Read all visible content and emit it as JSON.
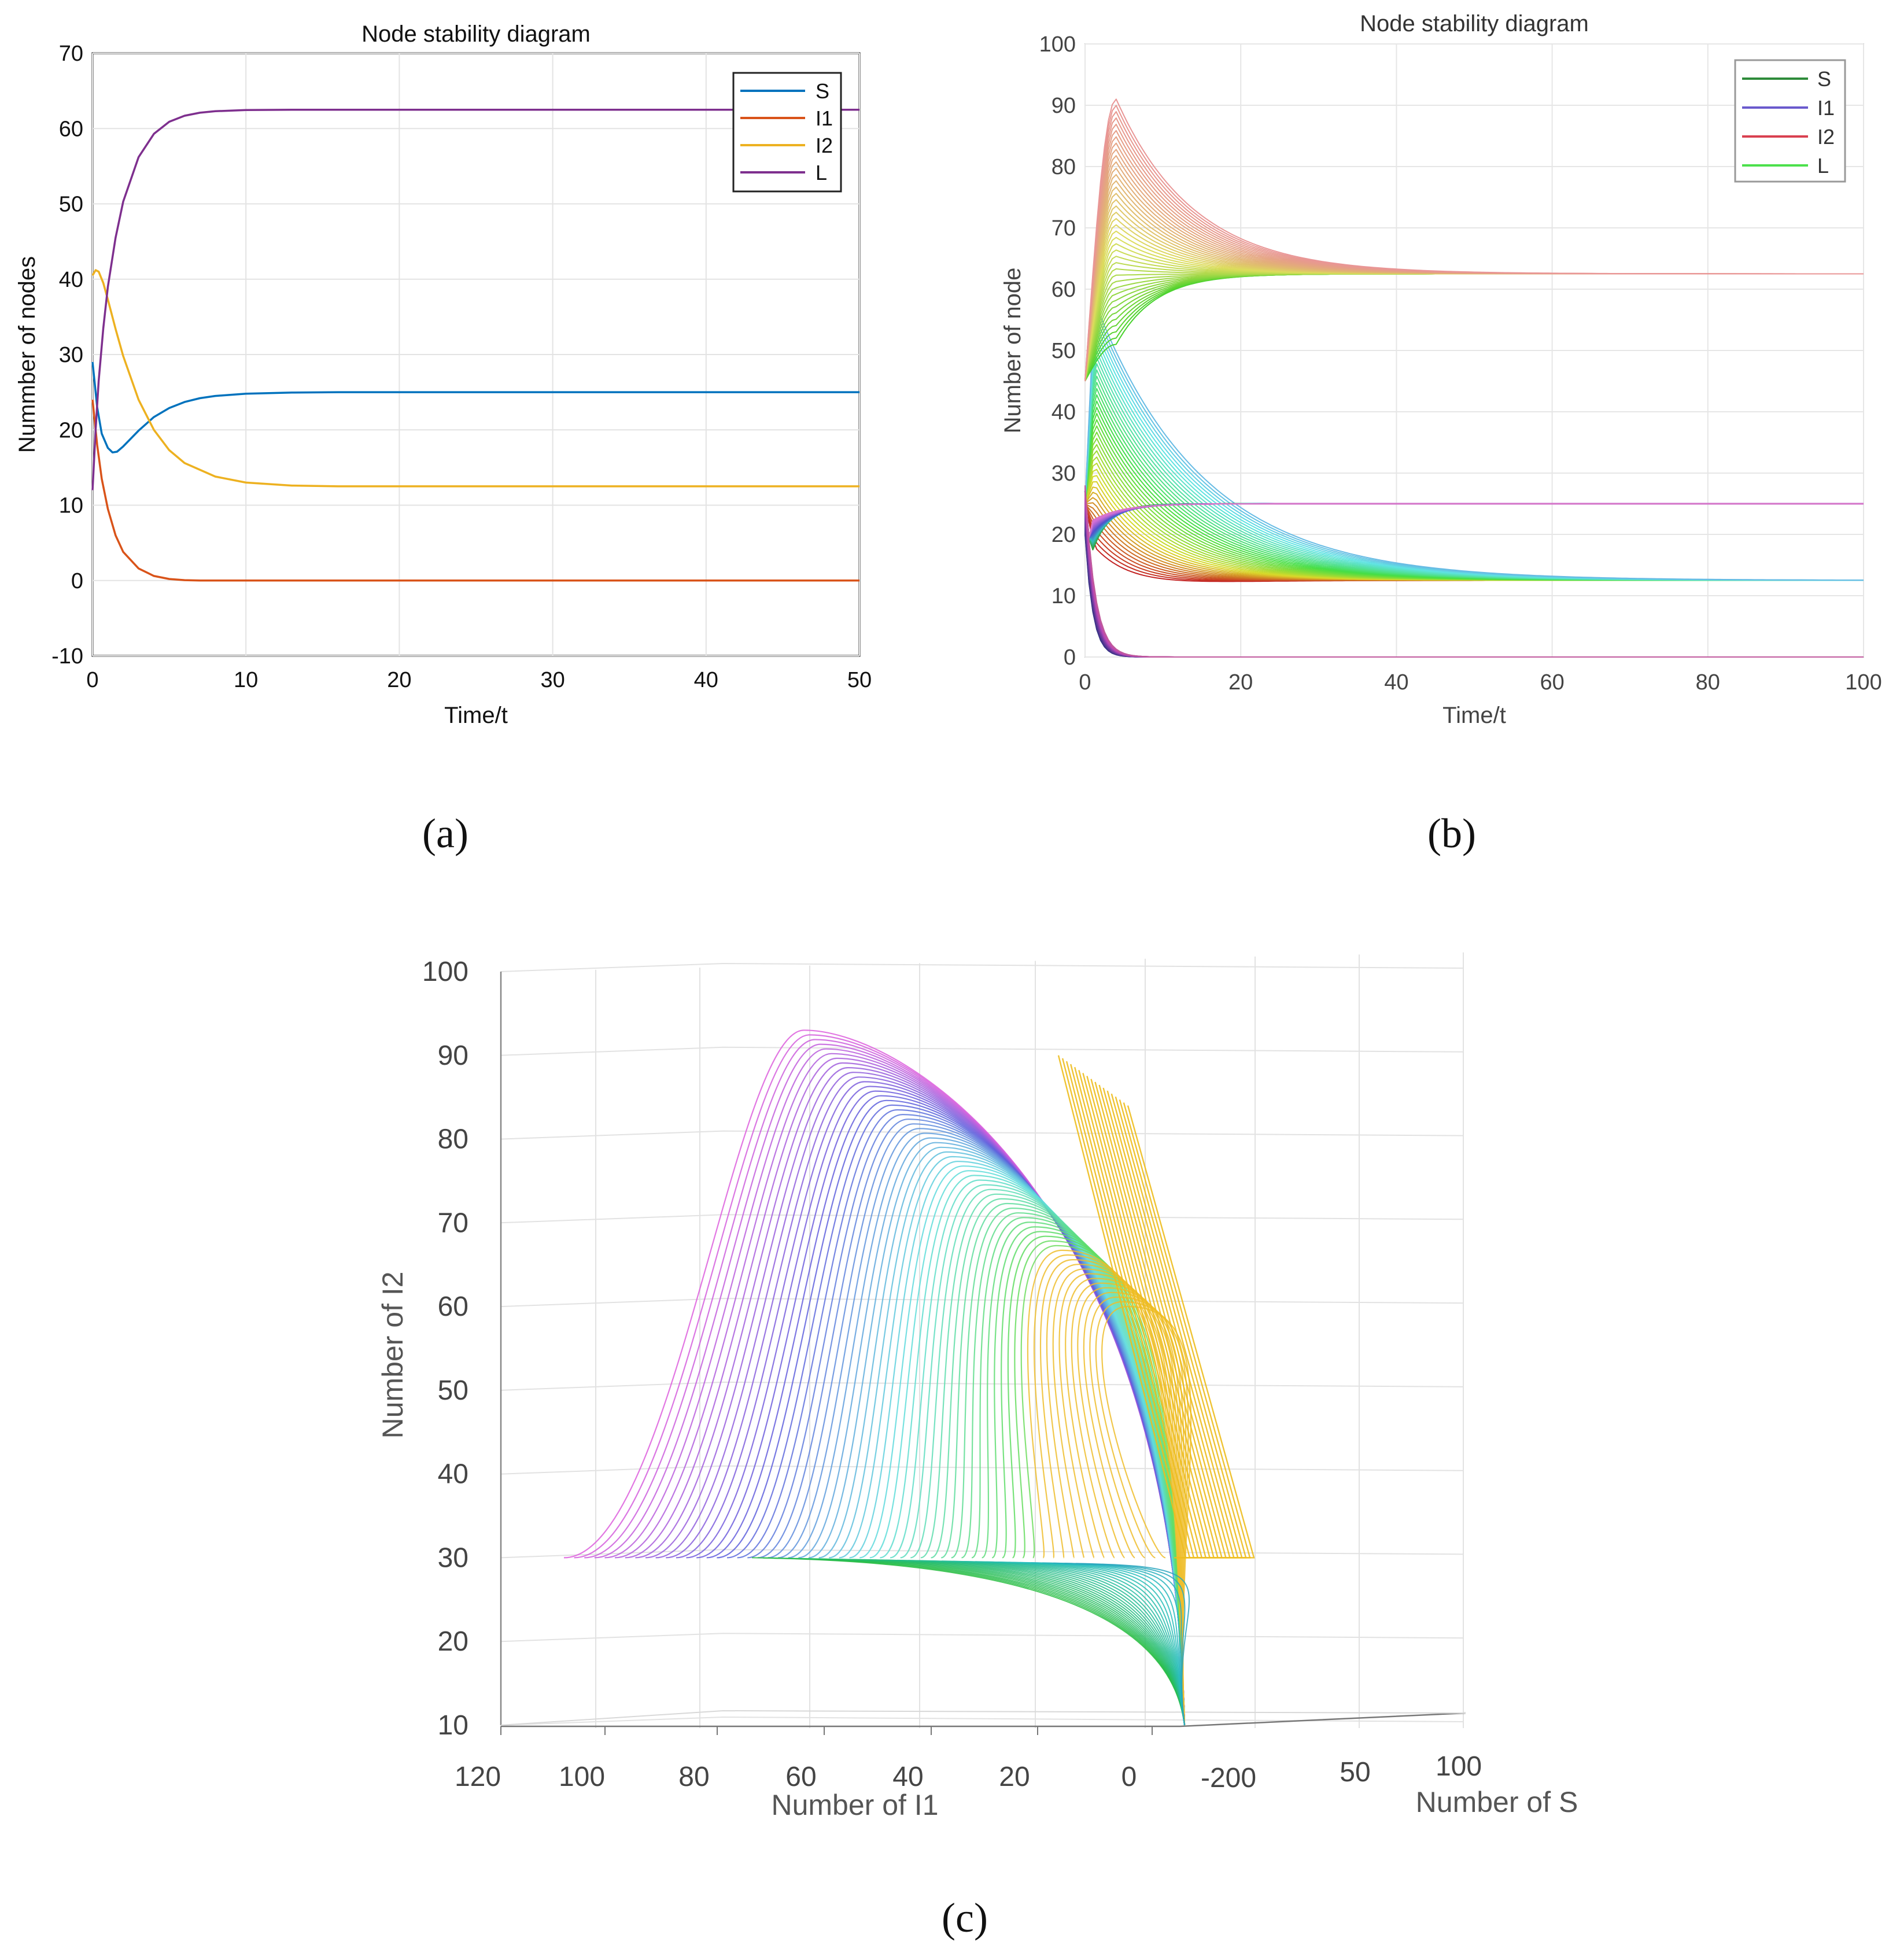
{
  "chart_data": [
    {
      "id": "a",
      "type": "line",
      "panel_label": "(a)",
      "title": "Node stability diagram",
      "xlabel": "Time/t",
      "ylabel": "Nummber of nodes",
      "xlim": [
        0,
        50
      ],
      "ylim": [
        -10,
        70
      ],
      "xticks": [
        0,
        10,
        20,
        30,
        40,
        50
      ],
      "yticks": [
        -10,
        0,
        10,
        20,
        30,
        40,
        50,
        60,
        70
      ],
      "grid": true,
      "legend_position": "top-right",
      "series": [
        {
          "name": "S",
          "color": "#0072BD",
          "x": [
            0,
            0.3,
            0.6,
            1,
            1.3,
            1.6,
            2,
            3,
            4,
            5,
            6,
            7,
            8,
            10,
            13,
            16,
            20,
            30,
            40,
            50
          ],
          "y": [
            29,
            23,
            19.5,
            17.6,
            17.0,
            17.1,
            17.8,
            19.9,
            21.7,
            22.9,
            23.7,
            24.2,
            24.5,
            24.8,
            24.95,
            25,
            25,
            25,
            25,
            25
          ]
        },
        {
          "name": "I1",
          "color": "#D95319",
          "x": [
            0,
            0.3,
            0.6,
            1,
            1.5,
            2,
            3,
            4,
            5,
            6,
            7,
            10,
            20,
            30,
            40,
            50
          ],
          "y": [
            24,
            18,
            13.5,
            9.5,
            6,
            3.8,
            1.6,
            0.6,
            0.2,
            0.05,
            0,
            0,
            0,
            0,
            0,
            0
          ]
        },
        {
          "name": "I2",
          "color": "#EDB120",
          "x": [
            0,
            0.2,
            0.4,
            0.7,
            1,
            1.5,
            2,
            3,
            4,
            5,
            6,
            8,
            10,
            13,
            16,
            20,
            30,
            40,
            50
          ],
          "y": [
            40.5,
            41.2,
            41.0,
            39.5,
            37.3,
            33.4,
            29.8,
            24.0,
            20.0,
            17.3,
            15.6,
            13.8,
            13.0,
            12.6,
            12.5,
            12.5,
            12.5,
            12.5,
            12.5
          ]
        },
        {
          "name": "L",
          "color": "#7E2F8E",
          "x": [
            0,
            0.2,
            0.4,
            0.7,
            1,
            1.5,
            2,
            3,
            4,
            5,
            6,
            7,
            8,
            10,
            13,
            20,
            30,
            40,
            50
          ],
          "y": [
            12,
            20,
            26.5,
            33.5,
            39,
            45.5,
            50.3,
            56.2,
            59.3,
            60.9,
            61.7,
            62.1,
            62.3,
            62.45,
            62.5,
            62.5,
            62.5,
            62.5,
            62.5
          ]
        }
      ]
    },
    {
      "id": "b",
      "type": "line",
      "panel_label": "(b)",
      "title": "Node stability diagram",
      "xlabel": "Time/t",
      "ylabel": "Number of node",
      "xlim": [
        0,
        100
      ],
      "ylim": [
        0,
        100
      ],
      "xticks": [
        0,
        20,
        40,
        60,
        80,
        100
      ],
      "yticks": [
        0,
        10,
        20,
        30,
        40,
        50,
        60,
        70,
        80,
        90,
        100
      ],
      "grid": true,
      "legend_position": "top-right",
      "legend": [
        {
          "name": "S",
          "color": "#2E8B3A"
        },
        {
          "name": "I1",
          "color": "#6A5ACD"
        },
        {
          "name": "I2",
          "color": "#D94050"
        },
        {
          "name": "L",
          "color": "#4CE04C"
        }
      ],
      "ensemble": {
        "trajectories_per_group": 40,
        "L_peak_range": [
          51,
          91
        ],
        "L_peak_time": 4,
        "L_steady": 62.5,
        "I2_steady": 12.5,
        "S_steady": 25,
        "I1_steady": 0,
        "settle_time_range": [
          40,
          60
        ]
      }
    },
    {
      "id": "c",
      "type": "line3d",
      "panel_label": "(c)",
      "title": "",
      "xlabel": "Number of I1",
      "ylabel": "Number of S",
      "zlabel": "Number of I2",
      "xticks": [
        120,
        100,
        80,
        60,
        40,
        20,
        0
      ],
      "yticks": [
        -200,
        50,
        100
      ],
      "zticks": [
        10,
        20,
        30,
        40,
        50,
        60,
        70,
        80,
        90,
        100
      ],
      "zlim": [
        10,
        100
      ],
      "ensemble": {
        "trajectories": 60,
        "start_I2": 30,
        "start_I1_range": [
          0,
          106
        ],
        "peak_I2_range": [
          60,
          93
        ],
        "end_point": {
          "I1": -5,
          "I2": 10
        }
      }
    }
  ]
}
